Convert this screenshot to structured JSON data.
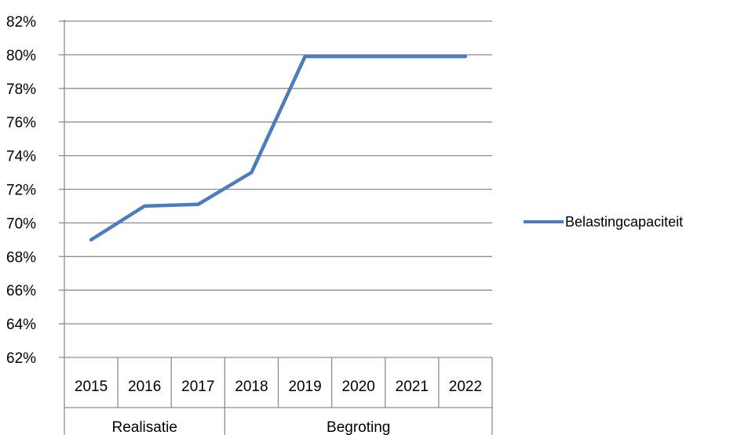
{
  "chart_data": {
    "type": "line",
    "categories": [
      "2015",
      "2016",
      "2017",
      "2018",
      "2019",
      "2020",
      "2021",
      "2022"
    ],
    "category_groups": [
      {
        "label": "Realisatie",
        "categories": [
          "2015",
          "2016",
          "2017"
        ]
      },
      {
        "label": "Begroting",
        "categories": [
          "2018",
          "2019",
          "2020",
          "2021",
          "2022"
        ]
      }
    ],
    "series": [
      {
        "name": "Belastingcapaciteit",
        "color": "#4A7EBB",
        "values": [
          69.0,
          71.0,
          71.1,
          73.0,
          79.9,
          79.9,
          79.9,
          79.9
        ]
      }
    ],
    "y_ticks": [
      "62%",
      "64%",
      "66%",
      "68%",
      "70%",
      "72%",
      "74%",
      "76%",
      "78%",
      "80%",
      "82%"
    ],
    "ylim": [
      62,
      82
    ],
    "grid": true,
    "legend_position": "right",
    "colors": {
      "series": "#4A7EBB",
      "gridline": "#8C8C8C",
      "axis": "#8C8C8C"
    }
  }
}
